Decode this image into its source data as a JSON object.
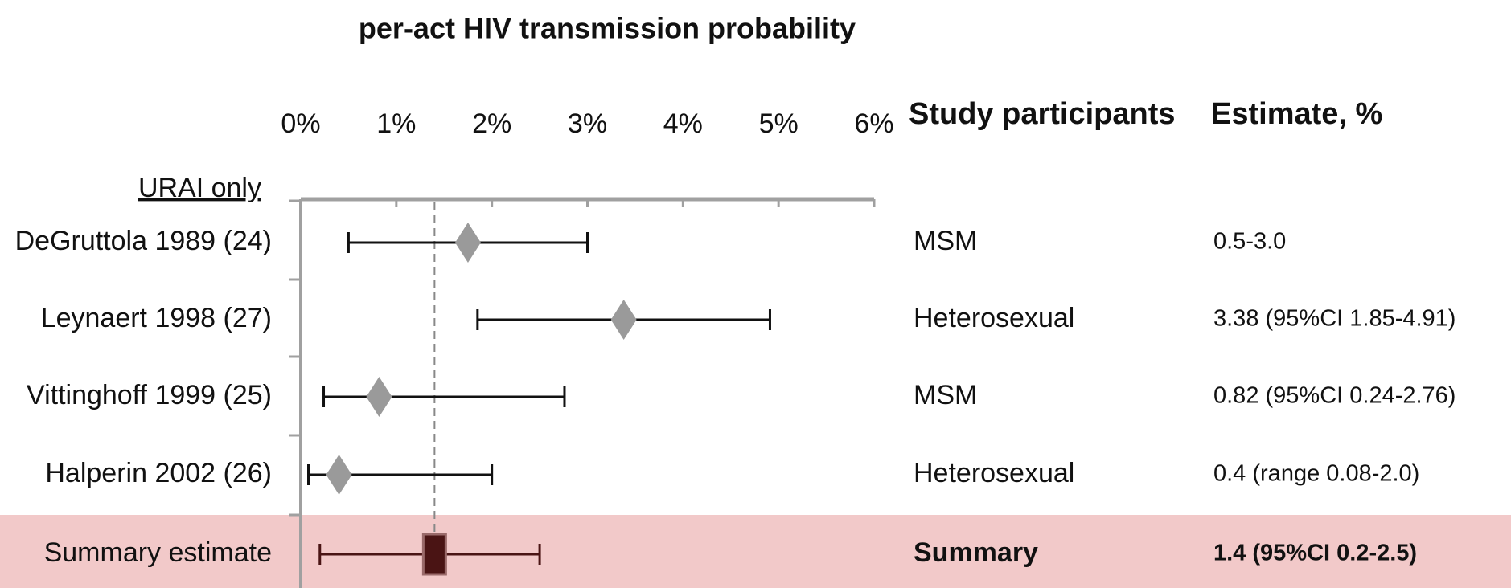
{
  "chart_data": {
    "type": "forest",
    "title": "per-act HIV transmission probability",
    "section_label": "URAI only",
    "column_headers": [
      "Study participants",
      "Estimate, %"
    ],
    "xlim": [
      0,
      6
    ],
    "xticks": [
      {
        "value": 0,
        "label": "0%"
      },
      {
        "value": 1,
        "label": "1%"
      },
      {
        "value": 2,
        "label": "2%"
      },
      {
        "value": 3,
        "label": "3%"
      },
      {
        "value": 4,
        "label": "4%"
      },
      {
        "value": 5,
        "label": "5%"
      },
      {
        "value": 6,
        "label": "6%"
      }
    ],
    "marker_color": "#9a9a9a",
    "studies": [
      {
        "name": "DeGruttola 1989 (24)",
        "participants": "MSM",
        "estimate": "0.5-3.0",
        "value": 1.75,
        "low": 0.5,
        "high": 3.0
      },
      {
        "name": "Leynaert 1998 (27)",
        "participants": "Heterosexual",
        "estimate": "3.38 (95%CI 1.85-4.91)",
        "value": 3.38,
        "low": 1.85,
        "high": 4.91
      },
      {
        "name": "Vittinghoff 1999 (25)",
        "participants": "MSM",
        "estimate": "0.82 (95%CI 0.24-2.76)",
        "value": 0.82,
        "low": 0.24,
        "high": 2.76
      },
      {
        "name": "Halperin 2002 (26)",
        "participants": "Heterosexual",
        "estimate": "0.4 (range 0.08-2.0)",
        "value": 0.4,
        "low": 0.08,
        "high": 2.0
      }
    ],
    "summary": {
      "name": "Summary estimate",
      "participants": "Summary",
      "estimate": "1.4 (95%CI 0.2-2.5)",
      "value": 1.4,
      "low": 0.2,
      "high": 2.5,
      "color": "#4a1414",
      "band_color": "#f2c9c9"
    }
  }
}
